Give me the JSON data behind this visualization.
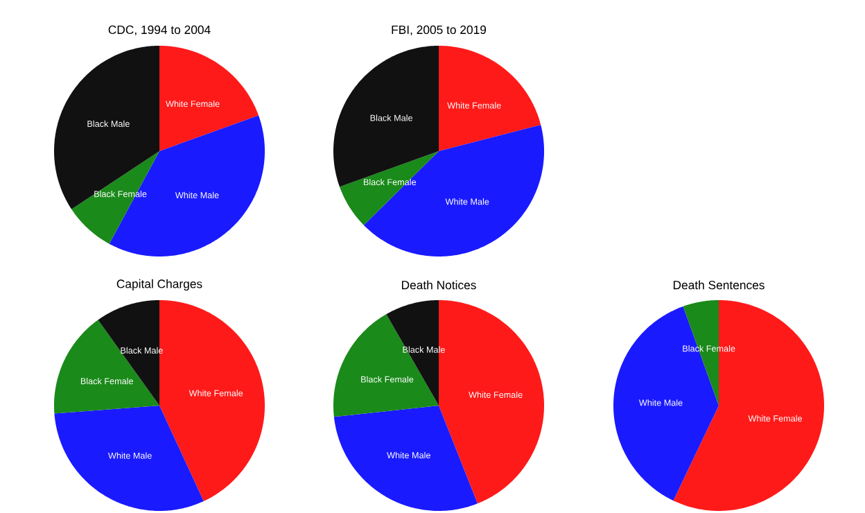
{
  "chart_data": [
    {
      "type": "pie",
      "title": "CDC, 1994 to 2004",
      "categories": [
        "White Female",
        "White Male",
        "Black Female",
        "Black Male"
      ],
      "values": [
        19.5,
        38.4,
        7.8,
        34.3
      ],
      "colors": [
        "#ff1a1a",
        "#1a1aff",
        "#1a8a1a",
        "#111111"
      ]
    },
    {
      "type": "pie",
      "title": "FBI, 2005 to 2019",
      "categories": [
        "White Female",
        "White Male",
        "Black Female",
        "Black Male"
      ],
      "values": [
        21.0,
        41.6,
        6.9,
        30.5
      ],
      "colors": [
        "#ff1a1a",
        "#1a1aff",
        "#1a8a1a",
        "#111111"
      ]
    },
    {
      "type": "pie",
      "title": "Capital Charges",
      "categories": [
        "White Female",
        "White Male",
        "Black Female",
        "Black Male"
      ],
      "values": [
        43.1,
        30.7,
        16.3,
        9.9
      ],
      "colors": [
        "#ff1a1a",
        "#1a1aff",
        "#1a8a1a",
        "#111111"
      ]
    },
    {
      "type": "pie",
      "title": "Death Notices",
      "categories": [
        "White Female",
        "White Male",
        "Black Female",
        "Black Male"
      ],
      "values": [
        44.0,
        29.3,
        18.4,
        8.3
      ],
      "colors": [
        "#ff1a1a",
        "#1a1aff",
        "#1a8a1a",
        "#111111"
      ]
    },
    {
      "type": "pie",
      "title": "Death Sentences",
      "categories": [
        "White Female",
        "White Male",
        "Black Female"
      ],
      "values": [
        57.1,
        37.4,
        5.5
      ],
      "colors": [
        "#ff1a1a",
        "#1a1aff",
        "#1a8a1a"
      ]
    }
  ]
}
